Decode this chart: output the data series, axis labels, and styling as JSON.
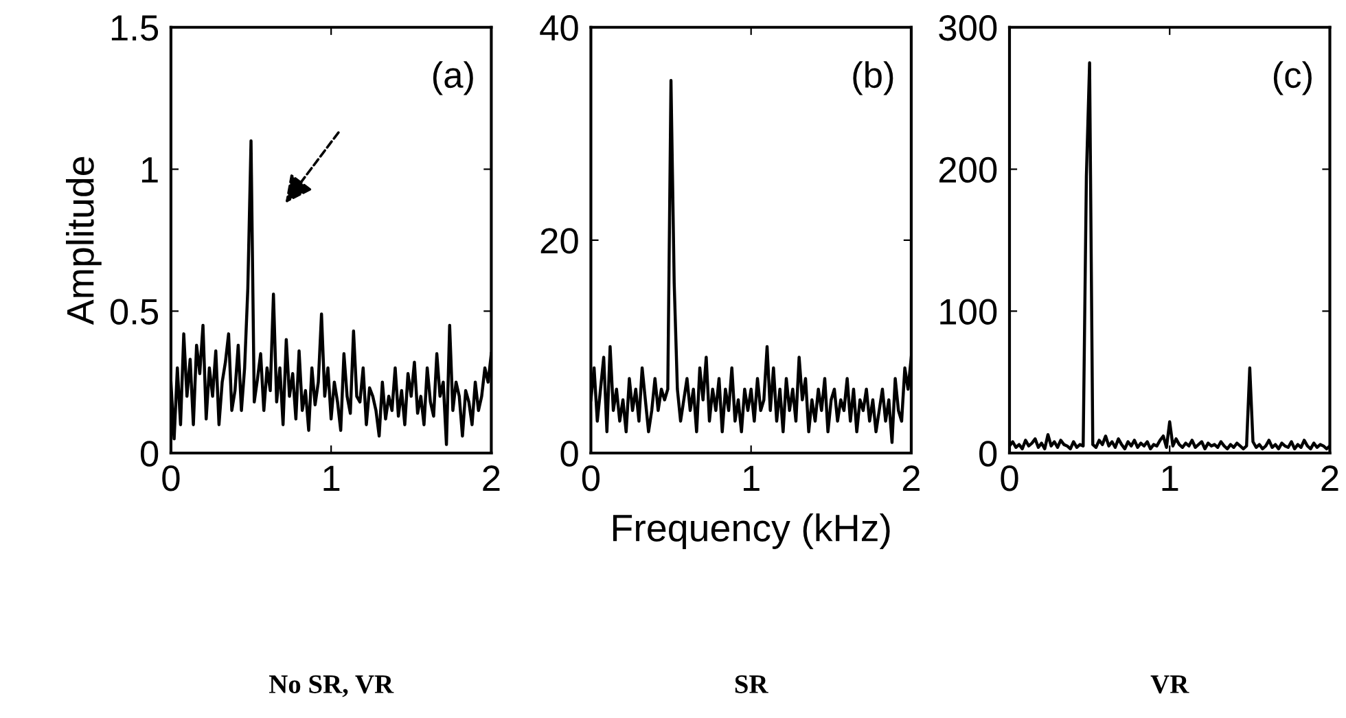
{
  "chart_data": [
    {
      "type": "line",
      "ylabel": "Amplitude",
      "annotations": [
        "(a)",
        "No SR, VR"
      ],
      "x": [
        0,
        0.02,
        0.04,
        0.06,
        0.08,
        0.1,
        0.12,
        0.14,
        0.16,
        0.18,
        0.2,
        0.22,
        0.24,
        0.26,
        0.28,
        0.3,
        0.32,
        0.34,
        0.36,
        0.38,
        0.4,
        0.42,
        0.44,
        0.46,
        0.48,
        0.5,
        0.52,
        0.54,
        0.56,
        0.58,
        0.6,
        0.62,
        0.64,
        0.66,
        0.68,
        0.7,
        0.72,
        0.74,
        0.76,
        0.78,
        0.8,
        0.82,
        0.84,
        0.86,
        0.88,
        0.9,
        0.92,
        0.94,
        0.96,
        0.98,
        1,
        1.02,
        1.04,
        1.06,
        1.08,
        1.1,
        1.12,
        1.14,
        1.16,
        1.18,
        1.2,
        1.22,
        1.24,
        1.26,
        1.28,
        1.3,
        1.32,
        1.34,
        1.36,
        1.38,
        1.4,
        1.42,
        1.44,
        1.46,
        1.48,
        1.5,
        1.52,
        1.54,
        1.56,
        1.58,
        1.6,
        1.62,
        1.64,
        1.66,
        1.68,
        1.7,
        1.72,
        1.74,
        1.76,
        1.78,
        1.8,
        1.82,
        1.84,
        1.86,
        1.88,
        1.9,
        1.92,
        1.94,
        1.96,
        1.98,
        2
      ],
      "series": [
        {
          "color": "#000000",
          "values": [
            0.25,
            0.05,
            0.3,
            0.1,
            0.42,
            0.2,
            0.33,
            0.1,
            0.38,
            0.28,
            0.45,
            0.12,
            0.3,
            0.2,
            0.36,
            0.1,
            0.25,
            0.32,
            0.42,
            0.15,
            0.22,
            0.38,
            0.15,
            0.3,
            0.58,
            1.1,
            0.18,
            0.26,
            0.35,
            0.15,
            0.3,
            0.22,
            0.56,
            0.18,
            0.3,
            0.1,
            0.4,
            0.2,
            0.28,
            0.12,
            0.36,
            0.15,
            0.22,
            0.08,
            0.3,
            0.17,
            0.25,
            0.49,
            0.2,
            0.3,
            0.12,
            0.25,
            0.18,
            0.08,
            0.35,
            0.2,
            0.14,
            0.43,
            0.2,
            0.18,
            0.3,
            0.1,
            0.23,
            0.2,
            0.15,
            0.06,
            0.25,
            0.12,
            0.2,
            0.15,
            0.3,
            0.13,
            0.22,
            0.1,
            0.28,
            0.2,
            0.32,
            0.14,
            0.2,
            0.1,
            0.3,
            0.18,
            0.13,
            0.35,
            0.2,
            0.25,
            0.03,
            0.45,
            0.15,
            0.25,
            0.2,
            0.06,
            0.22,
            0.18,
            0.1,
            0.25,
            0.15,
            0.2,
            0.3,
            0.25,
            0.35
          ]
        }
      ],
      "xlim": [
        0,
        2
      ],
      "xticks": [
        0,
        1,
        2
      ],
      "ylim": [
        0,
        1.5
      ],
      "yticks": [
        0,
        0.5,
        1,
        1.5
      ],
      "grid": false,
      "legend": false,
      "marker": "none",
      "line_style": "solid"
    },
    {
      "type": "line",
      "xlabel": "Frequency (kHz)",
      "annotations": [
        "(b)",
        "SR"
      ],
      "x": [
        0,
        0.02,
        0.04,
        0.06,
        0.08,
        0.1,
        0.12,
        0.14,
        0.16,
        0.18,
        0.2,
        0.22,
        0.24,
        0.26,
        0.28,
        0.3,
        0.32,
        0.34,
        0.36,
        0.38,
        0.4,
        0.42,
        0.44,
        0.46,
        0.48,
        0.5,
        0.52,
        0.54,
        0.56,
        0.58,
        0.6,
        0.62,
        0.64,
        0.66,
        0.68,
        0.7,
        0.72,
        0.74,
        0.76,
        0.78,
        0.8,
        0.82,
        0.84,
        0.86,
        0.88,
        0.9,
        0.92,
        0.94,
        0.96,
        0.98,
        1,
        1.02,
        1.04,
        1.06,
        1.08,
        1.1,
        1.12,
        1.14,
        1.16,
        1.18,
        1.2,
        1.22,
        1.24,
        1.26,
        1.28,
        1.3,
        1.32,
        1.34,
        1.36,
        1.38,
        1.4,
        1.42,
        1.44,
        1.46,
        1.48,
        1.5,
        1.52,
        1.54,
        1.56,
        1.58,
        1.6,
        1.62,
        1.64,
        1.66,
        1.68,
        1.7,
        1.72,
        1.74,
        1.76,
        1.78,
        1.8,
        1.82,
        1.84,
        1.86,
        1.88,
        1.9,
        1.92,
        1.94,
        1.96,
        1.98,
        2
      ],
      "series": [
        {
          "color": "#000000",
          "values": [
            5,
            8,
            3,
            6,
            9,
            2,
            10,
            4,
            6,
            3,
            5,
            2,
            7,
            4,
            6,
            3,
            8,
            5,
            2,
            4,
            7,
            4,
            6,
            5,
            6,
            35,
            16,
            6,
            3,
            5,
            7,
            4,
            6,
            2,
            8,
            5,
            9,
            3,
            6,
            4,
            7,
            2,
            6,
            4,
            8,
            3,
            5,
            2,
            6,
            4,
            6,
            3,
            7,
            4,
            5,
            10,
            4,
            8,
            3,
            6,
            2,
            7,
            4,
            6,
            3,
            9,
            5,
            7,
            2,
            5,
            3,
            6,
            4,
            7,
            2,
            5,
            6,
            3,
            5,
            4,
            7,
            3,
            6,
            2,
            5,
            4,
            6,
            3,
            5,
            2,
            4,
            6,
            3,
            5,
            1,
            7,
            4,
            3,
            8,
            6,
            9
          ]
        }
      ],
      "xlim": [
        0,
        2
      ],
      "xticks": [
        0,
        1,
        2
      ],
      "ylim": [
        0,
        40
      ],
      "yticks": [
        0,
        20,
        40
      ],
      "grid": false,
      "legend": false,
      "marker": "none",
      "line_style": "solid"
    },
    {
      "type": "line",
      "annotations": [
        "(c)",
        "VR"
      ],
      "x": [
        0,
        0.02,
        0.04,
        0.06,
        0.08,
        0.1,
        0.12,
        0.14,
        0.16,
        0.18,
        0.2,
        0.22,
        0.24,
        0.26,
        0.28,
        0.3,
        0.32,
        0.34,
        0.36,
        0.38,
        0.4,
        0.42,
        0.44,
        0.46,
        0.48,
        0.5,
        0.52,
        0.54,
        0.56,
        0.58,
        0.6,
        0.62,
        0.64,
        0.66,
        0.68,
        0.7,
        0.72,
        0.74,
        0.76,
        0.78,
        0.8,
        0.82,
        0.84,
        0.86,
        0.88,
        0.9,
        0.92,
        0.94,
        0.96,
        0.98,
        1,
        1.02,
        1.04,
        1.06,
        1.08,
        1.1,
        1.12,
        1.14,
        1.16,
        1.18,
        1.2,
        1.22,
        1.24,
        1.26,
        1.28,
        1.3,
        1.32,
        1.34,
        1.36,
        1.38,
        1.4,
        1.42,
        1.44,
        1.46,
        1.48,
        1.5,
        1.52,
        1.54,
        1.56,
        1.58,
        1.6,
        1.62,
        1.64,
        1.66,
        1.68,
        1.7,
        1.72,
        1.74,
        1.76,
        1.78,
        1.8,
        1.82,
        1.84,
        1.86,
        1.88,
        1.9,
        1.92,
        1.94,
        1.96,
        1.98,
        2
      ],
      "series": [
        {
          "color": "#000000",
          "values": [
            5,
            8,
            4,
            6,
            3,
            9,
            5,
            7,
            10,
            4,
            7,
            3,
            13,
            5,
            8,
            4,
            9,
            6,
            5,
            3,
            8,
            4,
            6,
            5,
            195,
            275,
            6,
            4,
            9,
            6,
            12,
            5,
            8,
            4,
            10,
            6,
            3,
            8,
            5,
            9,
            4,
            7,
            5,
            8,
            3,
            6,
            5,
            9,
            12,
            4,
            22,
            5,
            10,
            6,
            4,
            7,
            5,
            9,
            4,
            6,
            8,
            3,
            7,
            5,
            6,
            4,
            8,
            5,
            3,
            6,
            4,
            7,
            5,
            3,
            5,
            60,
            8,
            4,
            6,
            3,
            5,
            9,
            4,
            6,
            3,
            7,
            5,
            4,
            8,
            3,
            6,
            4,
            9,
            5,
            3,
            7,
            4,
            6,
            5,
            3,
            5
          ]
        }
      ],
      "xlim": [
        0,
        2
      ],
      "xticks": [
        0,
        1,
        2
      ],
      "ylim": [
        0,
        300
      ],
      "yticks": [
        0,
        100,
        200,
        300
      ],
      "grid": false,
      "legend": false,
      "marker": "none",
      "line_style": "solid"
    }
  ]
}
